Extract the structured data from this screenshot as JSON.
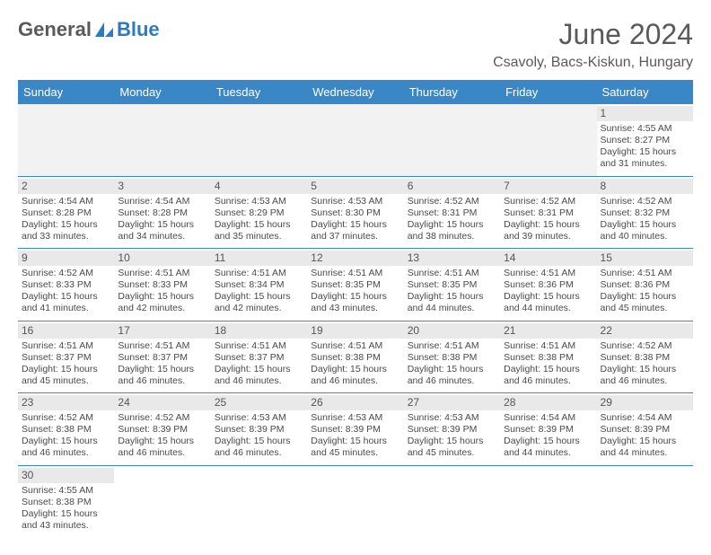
{
  "logo": {
    "text1": "General",
    "text2": "Blue"
  },
  "title": "June 2024",
  "location": "Csavoly, Bacs-Kiskun, Hungary",
  "colors": {
    "header_bg": "#3a87c7",
    "header_fg": "#ffffff",
    "daynum_bg": "#e9e9e9",
    "text": "#4a4a4a",
    "logo_gray": "#5a5a5a",
    "logo_blue": "#2b7bbd",
    "row_border": "#3a87c7"
  },
  "weekdays": [
    "Sunday",
    "Monday",
    "Tuesday",
    "Wednesday",
    "Thursday",
    "Friday",
    "Saturday"
  ],
  "first_weekday_index": 6,
  "days": [
    {
      "n": 1,
      "sunrise": "4:55 AM",
      "sunset": "8:27 PM",
      "daylight": "15 hours and 31 minutes."
    },
    {
      "n": 2,
      "sunrise": "4:54 AM",
      "sunset": "8:28 PM",
      "daylight": "15 hours and 33 minutes."
    },
    {
      "n": 3,
      "sunrise": "4:54 AM",
      "sunset": "8:28 PM",
      "daylight": "15 hours and 34 minutes."
    },
    {
      "n": 4,
      "sunrise": "4:53 AM",
      "sunset": "8:29 PM",
      "daylight": "15 hours and 35 minutes."
    },
    {
      "n": 5,
      "sunrise": "4:53 AM",
      "sunset": "8:30 PM",
      "daylight": "15 hours and 37 minutes."
    },
    {
      "n": 6,
      "sunrise": "4:52 AM",
      "sunset": "8:31 PM",
      "daylight": "15 hours and 38 minutes."
    },
    {
      "n": 7,
      "sunrise": "4:52 AM",
      "sunset": "8:31 PM",
      "daylight": "15 hours and 39 minutes."
    },
    {
      "n": 8,
      "sunrise": "4:52 AM",
      "sunset": "8:32 PM",
      "daylight": "15 hours and 40 minutes."
    },
    {
      "n": 9,
      "sunrise": "4:52 AM",
      "sunset": "8:33 PM",
      "daylight": "15 hours and 41 minutes."
    },
    {
      "n": 10,
      "sunrise": "4:51 AM",
      "sunset": "8:33 PM",
      "daylight": "15 hours and 42 minutes."
    },
    {
      "n": 11,
      "sunrise": "4:51 AM",
      "sunset": "8:34 PM",
      "daylight": "15 hours and 42 minutes."
    },
    {
      "n": 12,
      "sunrise": "4:51 AM",
      "sunset": "8:35 PM",
      "daylight": "15 hours and 43 minutes."
    },
    {
      "n": 13,
      "sunrise": "4:51 AM",
      "sunset": "8:35 PM",
      "daylight": "15 hours and 44 minutes."
    },
    {
      "n": 14,
      "sunrise": "4:51 AM",
      "sunset": "8:36 PM",
      "daylight": "15 hours and 44 minutes."
    },
    {
      "n": 15,
      "sunrise": "4:51 AM",
      "sunset": "8:36 PM",
      "daylight": "15 hours and 45 minutes."
    },
    {
      "n": 16,
      "sunrise": "4:51 AM",
      "sunset": "8:37 PM",
      "daylight": "15 hours and 45 minutes."
    },
    {
      "n": 17,
      "sunrise": "4:51 AM",
      "sunset": "8:37 PM",
      "daylight": "15 hours and 46 minutes."
    },
    {
      "n": 18,
      "sunrise": "4:51 AM",
      "sunset": "8:37 PM",
      "daylight": "15 hours and 46 minutes."
    },
    {
      "n": 19,
      "sunrise": "4:51 AM",
      "sunset": "8:38 PM",
      "daylight": "15 hours and 46 minutes."
    },
    {
      "n": 20,
      "sunrise": "4:51 AM",
      "sunset": "8:38 PM",
      "daylight": "15 hours and 46 minutes."
    },
    {
      "n": 21,
      "sunrise": "4:51 AM",
      "sunset": "8:38 PM",
      "daylight": "15 hours and 46 minutes."
    },
    {
      "n": 22,
      "sunrise": "4:52 AM",
      "sunset": "8:38 PM",
      "daylight": "15 hours and 46 minutes."
    },
    {
      "n": 23,
      "sunrise": "4:52 AM",
      "sunset": "8:38 PM",
      "daylight": "15 hours and 46 minutes."
    },
    {
      "n": 24,
      "sunrise": "4:52 AM",
      "sunset": "8:39 PM",
      "daylight": "15 hours and 46 minutes."
    },
    {
      "n": 25,
      "sunrise": "4:53 AM",
      "sunset": "8:39 PM",
      "daylight": "15 hours and 46 minutes."
    },
    {
      "n": 26,
      "sunrise": "4:53 AM",
      "sunset": "8:39 PM",
      "daylight": "15 hours and 45 minutes."
    },
    {
      "n": 27,
      "sunrise": "4:53 AM",
      "sunset": "8:39 PM",
      "daylight": "15 hours and 45 minutes."
    },
    {
      "n": 28,
      "sunrise": "4:54 AM",
      "sunset": "8:39 PM",
      "daylight": "15 hours and 44 minutes."
    },
    {
      "n": 29,
      "sunrise": "4:54 AM",
      "sunset": "8:39 PM",
      "daylight": "15 hours and 44 minutes."
    },
    {
      "n": 30,
      "sunrise": "4:55 AM",
      "sunset": "8:38 PM",
      "daylight": "15 hours and 43 minutes."
    }
  ],
  "labels": {
    "sunrise": "Sunrise:",
    "sunset": "Sunset:",
    "daylight": "Daylight:"
  }
}
